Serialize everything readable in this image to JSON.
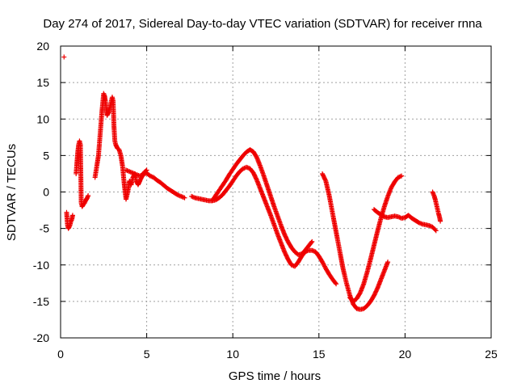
{
  "chart_data": {
    "type": "scatter",
    "title": "Day 274 of 2017, Sidereal Day-to-day VTEC variation (SDTVAR) for receiver rnna",
    "xlabel": "GPS time / hours",
    "ylabel": "SDTVAR / TECUs",
    "xlim": [
      0,
      25
    ],
    "ylim": [
      -20,
      20
    ],
    "xticks": [
      0,
      5,
      10,
      15,
      20,
      25
    ],
    "yticks": [
      -20,
      -15,
      -10,
      -5,
      0,
      5,
      10,
      15,
      20
    ],
    "xtick_labels": [
      "0",
      "5",
      "10",
      "15",
      "20",
      "25"
    ],
    "ytick_labels": [
      "-20",
      "-15",
      "-10",
      "-5",
      "0",
      "5",
      "10",
      "15",
      "20"
    ],
    "grid": true,
    "marker": "plus",
    "color": "#ee0000",
    "series": [
      {
        "name": "s1",
        "x": [
          0.2
        ],
        "y": [
          18.5
        ]
      },
      {
        "name": "s2",
        "x": [
          0.35,
          0.4,
          0.45,
          0.5,
          0.55,
          0.6,
          0.65,
          0.7
        ],
        "y": [
          -2.8,
          -4.5,
          -5.0,
          -4.8,
          -4.5,
          -4.0,
          -3.8,
          -3.2
        ]
      },
      {
        "name": "s3",
        "x": [
          0.9,
          0.95,
          1.0,
          1.05,
          1.1,
          1.15,
          1.2,
          1.25,
          1.3,
          1.35,
          1.4,
          1.45,
          1.5,
          1.55,
          1.6
        ],
        "y": [
          2.5,
          4.0,
          5.5,
          6.5,
          7.0,
          6.5,
          -1.5,
          -2.0,
          -1.8,
          -1.6,
          -1.5,
          -1.2,
          -1.0,
          -0.8,
          -0.5
        ]
      },
      {
        "name": "s4",
        "x": [
          2.0,
          2.1,
          2.2,
          2.3,
          2.4,
          2.5,
          2.55,
          2.6,
          2.7,
          2.8,
          2.9,
          3.0,
          3.05,
          3.1,
          3.15,
          3.2,
          3.3,
          3.4,
          3.5,
          3.6,
          3.7,
          3.8,
          3.9,
          4.0,
          4.1,
          4.2,
          4.3,
          4.4,
          4.5,
          4.6,
          4.7,
          4.8,
          4.9,
          5.0
        ],
        "y": [
          2.0,
          3.5,
          5.0,
          8.0,
          11.0,
          13.5,
          13.2,
          12.5,
          10.5,
          11.0,
          12.0,
          13.0,
          12.5,
          9.0,
          7.0,
          6.5,
          6.0,
          5.8,
          5.0,
          3.5,
          1.0,
          -1.0,
          0.0,
          1.5,
          1.0,
          2.0,
          2.5,
          1.5,
          1.0,
          1.5,
          2.0,
          2.5,
          2.8,
          3.0
        ]
      },
      {
        "name": "s5",
        "x": [
          3.8,
          4.0,
          4.2,
          4.4,
          4.6,
          4.8,
          5.0,
          5.2,
          5.4,
          5.6,
          5.8,
          6.0,
          6.2,
          6.4,
          6.6,
          6.8,
          7.0,
          7.2
        ],
        "y": [
          3.0,
          2.8,
          2.6,
          2.4,
          2.2,
          2.4,
          2.6,
          2.2,
          2.0,
          1.6,
          1.3,
          0.9,
          0.5,
          0.2,
          -0.1,
          -0.4,
          -0.6,
          -0.8
        ]
      },
      {
        "name": "s6",
        "x": [
          7.6,
          7.8,
          8.0,
          8.2,
          8.4,
          8.6,
          8.8,
          9.0,
          9.2,
          9.4,
          9.6,
          9.8,
          10.0,
          10.2,
          10.4,
          10.6,
          10.8,
          11.0,
          11.2,
          11.4,
          11.6,
          11.8,
          12.0,
          12.2,
          12.4,
          12.6,
          12.8,
          13.0,
          13.2,
          13.4,
          13.6,
          13.8,
          14.0,
          14.2,
          14.4,
          14.6,
          14.8,
          15.0,
          15.2,
          15.4,
          15.6,
          15.8,
          16.0
        ],
        "y": [
          -0.6,
          -0.8,
          -0.9,
          -1.0,
          -1.1,
          -1.2,
          -1.2,
          -1.1,
          -0.8,
          -0.4,
          0.2,
          0.8,
          1.5,
          2.2,
          2.8,
          3.2,
          3.4,
          3.2,
          2.6,
          1.6,
          0.4,
          -0.8,
          -2.0,
          -3.2,
          -4.5,
          -5.8,
          -7.0,
          -8.2,
          -9.2,
          -10.0,
          -10.2,
          -9.6,
          -8.8,
          -8.2,
          -8.0,
          -8.0,
          -8.2,
          -8.8,
          -9.6,
          -10.5,
          -11.3,
          -12.0,
          -12.6
        ]
      },
      {
        "name": "s7",
        "x": [
          8.8,
          9.0,
          9.2,
          9.4,
          9.6,
          9.8,
          10.0,
          10.2,
          10.4,
          10.6,
          10.8,
          11.0,
          11.2,
          11.4,
          11.6,
          11.8,
          12.0,
          12.2,
          12.4,
          12.6,
          12.8,
          13.0,
          13.2,
          13.4,
          13.6,
          13.8,
          14.0,
          14.2,
          14.4,
          14.6
        ],
        "y": [
          -1.2,
          -0.5,
          0.2,
          0.9,
          1.6,
          2.4,
          3.1,
          3.8,
          4.4,
          5.0,
          5.5,
          5.8,
          5.5,
          4.7,
          3.5,
          2.2,
          0.8,
          -0.6,
          -2.0,
          -3.3,
          -4.6,
          -5.8,
          -6.8,
          -7.6,
          -8.2,
          -8.6,
          -8.5,
          -8.0,
          -7.4,
          -6.8
        ]
      },
      {
        "name": "s8",
        "x": [
          15.2,
          15.4,
          15.6,
          15.8,
          16.0,
          16.2,
          16.4,
          16.6,
          16.8,
          17.0,
          17.2,
          17.4,
          17.6,
          17.8,
          18.0,
          18.2,
          18.4,
          18.6,
          18.8,
          19.0
        ],
        "y": [
          2.5,
          1.5,
          -0.5,
          -3.0,
          -5.5,
          -8.0,
          -10.5,
          -12.5,
          -14.2,
          -15.4,
          -16.0,
          -16.1,
          -16.0,
          -15.6,
          -15.0,
          -14.2,
          -13.2,
          -12.0,
          -10.8,
          -9.6
        ]
      },
      {
        "name": "s9",
        "x": [
          16.8,
          17.0,
          17.2,
          17.4,
          17.6,
          17.8,
          18.0,
          18.2,
          18.4,
          18.6,
          18.8,
          19.0,
          19.2,
          19.4,
          19.6,
          19.8
        ],
        "y": [
          -14.5,
          -15.0,
          -14.6,
          -13.8,
          -12.6,
          -11.0,
          -9.2,
          -7.3,
          -5.4,
          -3.6,
          -2.0,
          -0.6,
          0.6,
          1.4,
          2.0,
          2.2
        ]
      },
      {
        "name": "s10",
        "x": [
          18.2,
          18.4,
          18.6,
          18.8,
          19.0,
          19.2,
          19.4,
          19.6,
          19.8,
          20.0,
          20.2,
          20.4,
          20.6,
          20.8,
          21.0,
          21.2,
          21.4,
          21.6,
          21.8
        ],
        "y": [
          -2.4,
          -2.8,
          -3.1,
          -3.4,
          -3.5,
          -3.4,
          -3.3,
          -3.4,
          -3.6,
          -3.5,
          -3.2,
          -3.6,
          -3.9,
          -4.2,
          -4.4,
          -4.5,
          -4.6,
          -4.8,
          -5.3
        ]
      },
      {
        "name": "s11",
        "x": [
          21.6,
          21.65,
          21.7,
          21.75,
          21.8,
          21.85,
          21.9,
          21.95,
          22.0,
          22.05
        ],
        "y": [
          0.0,
          -0.3,
          -0.6,
          -1.0,
          -1.5,
          -2.0,
          -2.5,
          -3.0,
          -3.4,
          -4.0
        ]
      }
    ]
  }
}
